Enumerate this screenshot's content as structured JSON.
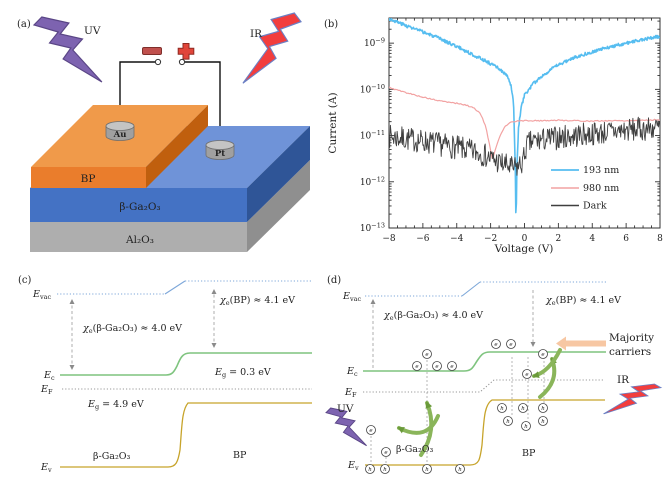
{
  "panels": {
    "a": {
      "tag": "(a)",
      "uv_label": "UV",
      "ir_label": "IR",
      "polarity": {
        "negative": "−",
        "positive": "+"
      },
      "electrodes": {
        "left": "Au",
        "right": "Pt"
      },
      "layers": [
        {
          "name": "BP"
        },
        {
          "name": "β-Ga₂O₃"
        },
        {
          "name": "Al₂O₃"
        }
      ],
      "colors": {
        "bp_front": "#ea7d2c",
        "bp_top": "#f09a4a",
        "bp_side": "#c05f0e",
        "ga_front": "#4472c4",
        "ga_top": "#6f93d8",
        "ga_side": "#2f5597",
        "al_front": "#aeaeae",
        "al_side": "#8f8f8f",
        "uv_bolt": "#7d63b0",
        "ir_bolt": "#f23d3d"
      }
    },
    "b": {
      "tag": "(b)"
    },
    "c": {
      "tag": "(c)",
      "e_vac": {
        "base": "E",
        "sub": "vac"
      },
      "e_c": {
        "base": "E",
        "sub": "c"
      },
      "e_f": {
        "base": "E",
        "sub": "F"
      },
      "e_v": {
        "base": "E",
        "sub": "v"
      },
      "chi_gao": {
        "sym": "χ",
        "sub": "e",
        "rest": "(β-Ga₂O₃) ≈ 4.0 eV"
      },
      "chi_bp": {
        "sym": "χ",
        "sub": "e",
        "rest": "(BP) ≈ 4.1 eV"
      },
      "eg_bp": {
        "base": "E",
        "sub": "g",
        "rest": " = 0.3 eV"
      },
      "eg_gao": {
        "base": "E",
        "sub": "g",
        "rest": " = 4.9 eV"
      },
      "region_left": "β-Ga₂O₃",
      "region_right": "BP",
      "colors": {
        "evac": "#7da7d9",
        "ec": "#7fc47f",
        "ef": "#999999",
        "ev": "#c7a42b"
      }
    },
    "d": {
      "tag": "(d)",
      "e_vac": {
        "base": "E",
        "sub": "vac"
      },
      "e_c": {
        "base": "E",
        "sub": "c"
      },
      "e_f": {
        "base": "E",
        "sub": "F"
      },
      "e_v": {
        "base": "E",
        "sub": "v"
      },
      "chi_gao": {
        "sym": "χ",
        "sub": "e",
        "rest": "(β-Ga₂O₃) ≈ 4.0 eV"
      },
      "chi_bp": {
        "sym": "χ",
        "sub": "e",
        "rest": "(BP) ≈ 4.1 eV"
      },
      "uv_label": "UV",
      "ir_label": "IR",
      "majority_line1": "Majority",
      "majority_line2": "carriers",
      "region_left": "β-Ga₂O₃",
      "region_right": "BP",
      "electron": "e",
      "hole": "h",
      "colors": {
        "evac": "#7da7d9",
        "ec": "#7fc47f",
        "ef": "#999999",
        "ev": "#c7a42b",
        "arrow_green": "#8ab55a",
        "majority_arrow": "#f7c7a3",
        "uv_bolt": "#7d63b0",
        "ir_bolt": "#f23d3d"
      }
    }
  },
  "chart_data": {
    "type": "line",
    "title": "",
    "xlabel": "Voltage (V)",
    "ylabel": "Current (A)",
    "xlim": [
      -8,
      8
    ],
    "ylim": [
      1e-13,
      3.5e-09
    ],
    "ylog": true,
    "grid": false,
    "legend_position": "lower right",
    "x_ticks": [
      {
        "label": "−8",
        "value": -8
      },
      {
        "label": "−6",
        "value": -6
      },
      {
        "label": "−4",
        "value": -4
      },
      {
        "label": "−2",
        "value": -2
      },
      {
        "label": "0",
        "value": 0
      },
      {
        "label": "2",
        "value": 2
      },
      {
        "label": "4",
        "value": 4
      },
      {
        "label": "6",
        "value": 6
      },
      {
        "label": "8",
        "value": 8
      }
    ],
    "y_ticks": [
      {
        "base": "10",
        "exp": "−9",
        "value": 1e-09
      },
      {
        "base": "10",
        "exp": "−10",
        "value": 1e-10
      },
      {
        "base": "10",
        "exp": "−11",
        "value": 1e-11
      },
      {
        "base": "10",
        "exp": "−12",
        "value": 1e-12
      },
      {
        "base": "10",
        "exp": "−13",
        "value": 1e-13
      }
    ],
    "series": [
      {
        "name": "193 nm",
        "color": "#56bdf0",
        "points": [
          [
            -8,
            3.4e-09
          ],
          [
            -7,
            2.4e-09
          ],
          [
            -6,
            1.75e-09
          ],
          [
            -5,
            1.25e-09
          ],
          [
            -4,
            8.5e-10
          ],
          [
            -3,
            5.5e-10
          ],
          [
            -2.5,
            4.5e-10
          ],
          [
            -2,
            3.6e-10
          ],
          [
            -1.5,
            2.8e-10
          ],
          [
            -1,
            1.9e-10
          ],
          [
            -0.8,
            1.2e-10
          ],
          [
            -0.65,
            5e-11
          ],
          [
            -0.55,
            3e-12
          ],
          [
            -0.5,
            1e-13
          ],
          [
            -0.45,
            2e-12
          ],
          [
            -0.35,
            1.5e-11
          ],
          [
            -0.2,
            4e-11
          ],
          [
            0,
            7.5e-11
          ],
          [
            0.5,
            1.3e-10
          ],
          [
            1,
            1.9e-10
          ],
          [
            1.5,
            2.6e-10
          ],
          [
            2,
            3.4e-10
          ],
          [
            3,
            5e-10
          ],
          [
            4,
            6.5e-10
          ],
          [
            5,
            8.2e-10
          ],
          [
            6,
            1e-09
          ],
          [
            7,
            1.2e-09
          ],
          [
            8,
            1.4e-09
          ]
        ]
      },
      {
        "name": "980 nm",
        "color": "#f2a2a2",
        "points": [
          [
            -8,
            1.1e-10
          ],
          [
            -7,
            8.5e-11
          ],
          [
            -6,
            6.8e-11
          ],
          [
            -5,
            5.6e-11
          ],
          [
            -4,
            5e-11
          ],
          [
            -3.5,
            4.6e-11
          ],
          [
            -3,
            4e-11
          ],
          [
            -2.6,
            3e-11
          ],
          [
            -2.3,
            1.6e-11
          ],
          [
            -2.05,
            6e-12
          ],
          [
            -1.9,
            2.9e-12
          ],
          [
            -1.75,
            4.5e-12
          ],
          [
            -1.5,
            9e-12
          ],
          [
            -1.2,
            1.5e-11
          ],
          [
            -0.9,
            1.9e-11
          ],
          [
            -0.5,
            2.05e-11
          ],
          [
            0,
            2.1e-11
          ],
          [
            1,
            2.1e-11
          ],
          [
            2,
            2.15e-11
          ],
          [
            3,
            2.1e-11
          ],
          [
            4,
            2.05e-11
          ],
          [
            5,
            2.1e-11
          ],
          [
            6,
            2.1e-11
          ],
          [
            7,
            2.15e-11
          ],
          [
            8,
            2.2e-11
          ]
        ]
      },
      {
        "name": "Dark",
        "color": "#3f3f3f",
        "points": [
          [
            -8,
            9.5e-12
          ],
          [
            -7,
            8.5e-12
          ],
          [
            -6,
            7.5e-12
          ],
          [
            -5,
            6.5e-12
          ],
          [
            -4,
            5.5e-12
          ],
          [
            -3,
            4.5e-12
          ],
          [
            -2.5,
            4e-12
          ],
          [
            -2,
            3.2e-12
          ],
          [
            -1.5,
            2.6e-12
          ],
          [
            -1,
            2.2e-12
          ],
          [
            -0.7,
            1.9e-12
          ],
          [
            -0.4,
            2.1e-12
          ],
          [
            -0.2,
            2.4e-12
          ],
          [
            -0.05,
            3e-12
          ],
          [
            0.05,
            5e-12
          ],
          [
            0.2,
            6.5e-12
          ],
          [
            0.5,
            7.5e-12
          ],
          [
            1,
            8e-12
          ],
          [
            2,
            9e-12
          ],
          [
            3,
            1e-11
          ],
          [
            4,
            1.1e-11
          ],
          [
            5,
            1.2e-11
          ],
          [
            6,
            1.3e-11
          ],
          [
            7,
            1.4e-11
          ],
          [
            8,
            1.5e-11
          ]
        ]
      }
    ]
  }
}
